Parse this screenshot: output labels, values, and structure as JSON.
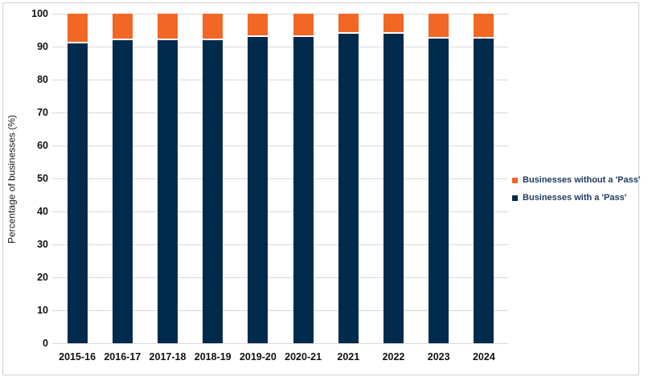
{
  "chart_data": {
    "type": "bar",
    "stacked": true,
    "title": "",
    "xlabel": "",
    "ylabel": "Percentage of businesses (%)",
    "ylim": [
      0,
      100
    ],
    "yticks": [
      0,
      10,
      20,
      30,
      40,
      50,
      60,
      70,
      80,
      90,
      100
    ],
    "grid": true,
    "legend_position": "right",
    "categories": [
      "2015-16",
      "2016-17",
      "2017-18",
      "2018-19",
      "2019-20",
      "2020-21",
      "2021",
      "2022",
      "2023",
      "2024"
    ],
    "series": [
      {
        "name": "Businesses with a 'Pass'",
        "color": "#002b4d",
        "values": [
          91,
          92,
          92,
          92,
          93,
          93,
          94,
          94,
          92.5,
          92.5
        ]
      },
      {
        "name": "Businesses without a 'Pass'",
        "color": "#f26724",
        "values": [
          9,
          8,
          8,
          8,
          7,
          7,
          6,
          6,
          7.5,
          7.5
        ]
      }
    ],
    "colors": {
      "gridline": "#d9d9d9",
      "frame_border": "#d2d2d2",
      "axis_text": "#111111",
      "legend_text": "#1f3a5f"
    }
  },
  "legend": {
    "items": [
      {
        "label": "Businesses without a 'Pass'",
        "series": "without"
      },
      {
        "label": "Businesses with a 'Pass'",
        "series": "with"
      }
    ]
  }
}
